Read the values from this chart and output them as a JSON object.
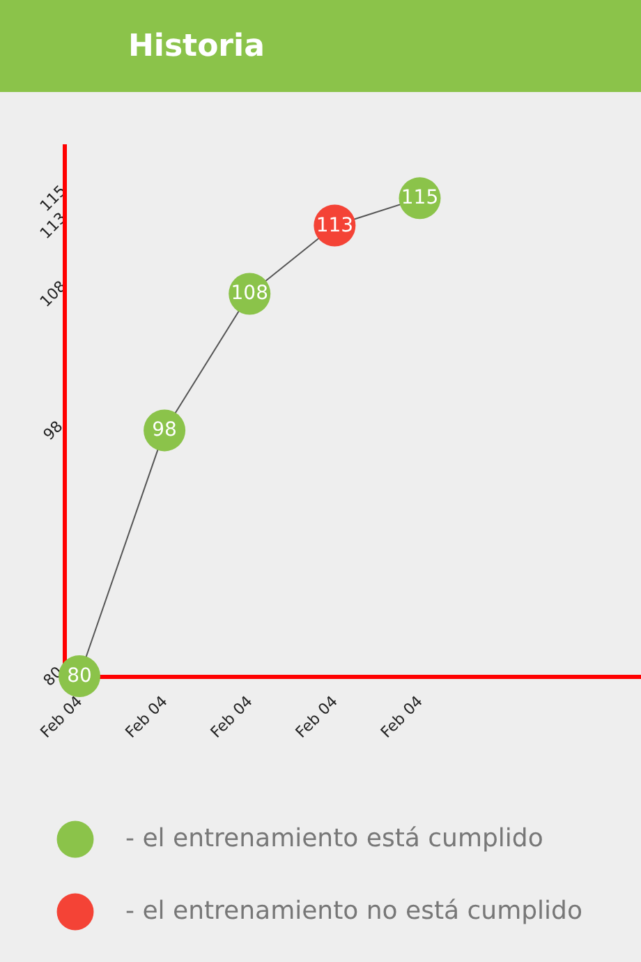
{
  "chart_data": {
    "type": "line",
    "title": "Historia",
    "categories": [
      "Feb 04",
      "Feb 04",
      "Feb 04",
      "Feb 04",
      "Feb 04"
    ],
    "series": [
      {
        "color": "#555555",
        "marker": "none",
        "values": [
          80,
          98,
          108,
          113,
          115
        ]
      },
      {
        "type": "scatter",
        "name": "- el entrenamiento está cumplido",
        "color": "#8bc34a",
        "values": [
          80,
          98,
          108,
          null,
          115
        ],
        "value_labels": [
          "80",
          "98",
          "108",
          null,
          "115"
        ]
      },
      {
        "type": "scatter",
        "name": "- el entrenamiento no está cumplido",
        "color": "#f44336",
        "values": [
          null,
          null,
          null,
          113,
          null
        ],
        "value_labels": [
          null,
          null,
          null,
          "113",
          null
        ]
      }
    ],
    "ylim": [
      80,
      119
    ],
    "yticks": [
      80,
      98,
      108,
      113,
      115
    ],
    "legend": "bottom",
    "marker": "circle",
    "grid": false
  }
}
